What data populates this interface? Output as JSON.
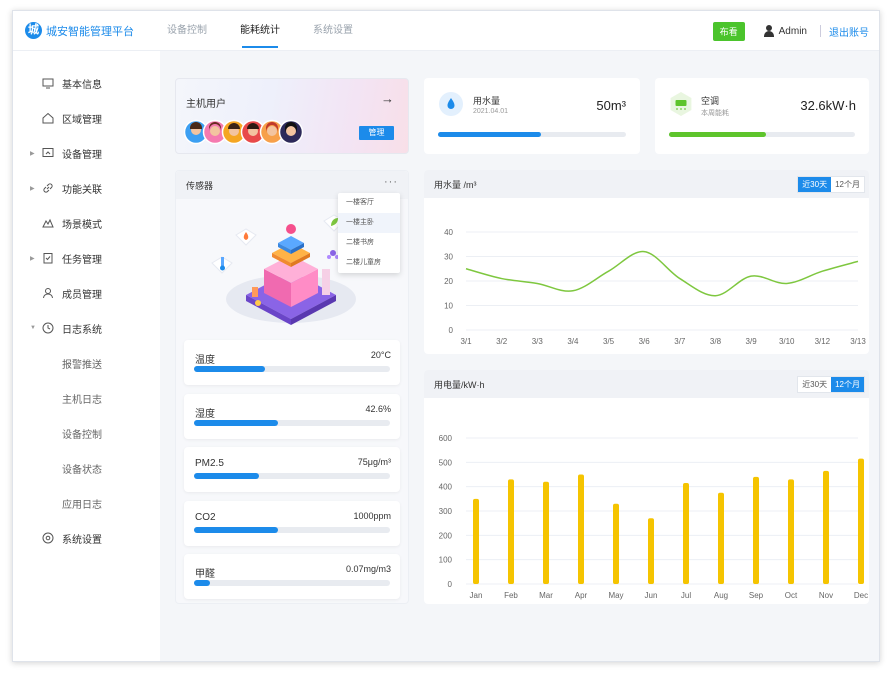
{
  "app": {
    "title": "城安智能管理平台",
    "logo_char": "城"
  },
  "topnav": {
    "tabs": [
      "设备控制",
      "能耗统计",
      "系统设置"
    ],
    "active_index": 1
  },
  "topright": {
    "badge": "布看",
    "user": "Admin",
    "logout": "退出账号"
  },
  "sidebar": {
    "items": [
      {
        "label": "基本信息",
        "icon": "monitor-icon",
        "arrow": ""
      },
      {
        "label": "区域管理",
        "icon": "home-icon",
        "arrow": ""
      },
      {
        "label": "设备管理",
        "icon": "device-icon",
        "arrow": "▶"
      },
      {
        "label": "功能关联",
        "icon": "link-icon",
        "arrow": "▶"
      },
      {
        "label": "场景模式",
        "icon": "scene-icon",
        "arrow": ""
      },
      {
        "label": "任务管理",
        "icon": "task-icon",
        "arrow": "▶"
      },
      {
        "label": "成员管理",
        "icon": "member-icon",
        "arrow": ""
      },
      {
        "label": "日志系统",
        "icon": "log-icon",
        "arrow": "▼"
      }
    ],
    "sub_items": [
      "报警推送",
      "主机日志",
      "设备控制",
      "设备状态",
      "应用日志"
    ],
    "footer_item": {
      "label": "系统设置",
      "icon": "settings-icon"
    }
  },
  "host_card": {
    "title": "主机用户",
    "manage_label": "管理",
    "arrow": "→"
  },
  "water_card": {
    "title": "用水量",
    "date": "2021.04.01",
    "value": "50m³",
    "progress": 0.55,
    "color": "#1c8bea"
  },
  "ac_card": {
    "title": "空调",
    "subtitle": "本周能耗",
    "value": "32.6kW·h",
    "progress": 0.52,
    "color": "#5ec42c"
  },
  "sensor_card": {
    "title": "传感器",
    "more": "···",
    "rooms": [
      "一楼客厅",
      "一楼主卧",
      "二楼书房",
      "二楼儿童房"
    ],
    "selected_room_index": 1,
    "sensors": [
      {
        "name": "温度",
        "value": "20°C",
        "progress": 0.36
      },
      {
        "name": "湿度",
        "value": "42.6%",
        "progress": 0.43
      },
      {
        "name": "PM2.5",
        "value": "75μg/m³",
        "progress": 0.33
      },
      {
        "name": "CO2",
        "value": "1000ppm",
        "progress": 0.43
      },
      {
        "name": "甲醛",
        "value": "0.07mg/m3",
        "progress": 0.08
      }
    ]
  },
  "water_chart": {
    "title": "用水量 /m³",
    "toggle": [
      "近30天",
      "12个月"
    ],
    "toggle_active": 0
  },
  "power_chart": {
    "title": "用电量/kW·h",
    "toggle": [
      "近30天",
      "12个月"
    ],
    "toggle_active": 1
  },
  "chart_data": [
    {
      "type": "line",
      "title": "用水量 /m³",
      "x": [
        "3/1",
        "3/2",
        "3/3",
        "3/4",
        "3/5",
        "3/6",
        "3/7",
        "3/8",
        "3/9",
        "3/10",
        "3/12",
        "3/13"
      ],
      "values": [
        25,
        21,
        19,
        16,
        24,
        32,
        21,
        14,
        22,
        19,
        24,
        28
      ],
      "ylim": [
        0,
        40
      ],
      "yticks": [
        0,
        10,
        20,
        30,
        40
      ],
      "color": "#7ec73f"
    },
    {
      "type": "bar",
      "title": "用电量/kW·h",
      "categories": [
        "Jan",
        "Feb",
        "Mar",
        "Apr",
        "May",
        "Jun",
        "Jul",
        "Aug",
        "Sep",
        "Oct",
        "Nov",
        "Dec"
      ],
      "values": [
        350,
        430,
        420,
        450,
        330,
        270,
        415,
        375,
        440,
        430,
        465,
        515
      ],
      "ylim": [
        0,
        600
      ],
      "yticks": [
        0,
        100,
        200,
        300,
        400,
        500,
        600
      ],
      "color": "#f5c400"
    }
  ]
}
